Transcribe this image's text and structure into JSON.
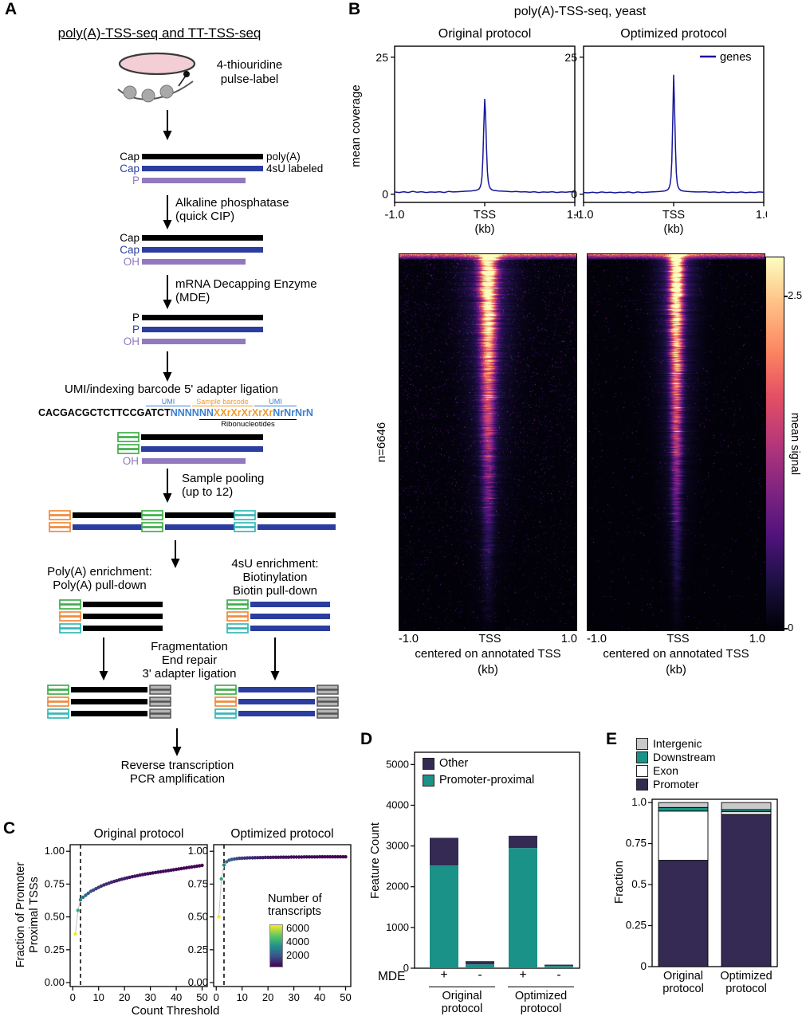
{
  "colors": {
    "dark_blue_line": "#16169b",
    "mrna_black": "#000000",
    "mrna_blue": "#2b3d9e",
    "mrna_purple": "#9279bd",
    "adapter_green": "#3faf4a",
    "adapter_orange": "#f08a3c",
    "adapter_teal": "#35b8b8",
    "teal_bar": "#1b9287",
    "purple_bar": "#352a54",
    "gray_bar": "#c9c9c9",
    "seq_blue": "#3c7fd0",
    "seq_orange": "#f09a2c"
  },
  "panelA": {
    "label": "A",
    "title": "poly(A)-TSS-seq and TT-TSS-seq",
    "pulse_line1": "4-thiouridine",
    "pulse_line2": "pulse-label",
    "g1_r1_left": "Cap",
    "g1_r1_right": "poly(A)",
    "g1_r2_left": "Cap",
    "g1_r2_right": "4sU labeled",
    "g1_r3_left": "P",
    "cip_line1": "Alkaline phosphatase",
    "cip_line2": "(quick CIP)",
    "g2_r1_left": "Cap",
    "g2_r2_left": "Cap",
    "g2_r3_left": "OH",
    "mde_line1": "mRNA Decapping Enzyme",
    "mde_line2": "(MDE)",
    "g3_r1_left": "P",
    "g3_r2_left": "P",
    "g3_r3_left": "OH",
    "ligation_title": "UMI/indexing barcode 5' adapter ligation",
    "seq_umi1": "UMI",
    "seq_barcode": "Sample barcode",
    "seq_umi2": "UMI",
    "seq_black": "CACGACGCTCTTCCGATCT",
    "seq_blue": "NNNNNN",
    "seq_orange": "XXrXrXrXrXr",
    "seq_blue2": "NrNrNrN",
    "seq_ribo": "Ribonucleotides",
    "lig_oh": "OH",
    "pool_line1": "Sample pooling",
    "pool_line2": "(up to 12)",
    "left_branch_line1": "Poly(A) enrichment:",
    "left_branch_line2": "Poly(A) pull-down",
    "right_branch_line1": "4sU enrichment:",
    "right_branch_line2": "Biotinylation",
    "right_branch_line3": "Biotin pull-down",
    "frag_line1": "Fragmentation",
    "frag_line2": "End repair",
    "frag_line3": "3' adapter ligation",
    "final_line1": "Reverse transcription",
    "final_line2": "PCR amplification"
  },
  "panelB": {
    "label": "B",
    "title": "poly(A)-TSS-seq, yeast",
    "subtitle_left": "Original protocol",
    "subtitle_right": "Optimized protocol",
    "ylabel": "mean coverage",
    "yticks": [
      "25",
      "0"
    ],
    "xticks": [
      "-1.0",
      "TSS",
      "1.0"
    ],
    "xunit": "(kb)",
    "legend": "genes",
    "n_label": "n=6646",
    "heat_xlabel": "centered on annotated TSS",
    "heat_xunit": "(kb)",
    "colorbar_label": "mean signal",
    "colorbar_ticks": [
      "2.5",
      "0"
    ]
  },
  "panelC": {
    "label": "C",
    "title_left": "Original protocol",
    "title_right": "Optimized protocol",
    "ylabel_line1": "Fraction of Promoter",
    "ylabel_line2": "Proximal TSSs",
    "xlabel": "Count Threshold",
    "legend_title_1": "Number of",
    "legend_title_2": "transcripts"
  },
  "panelD": {
    "label": "D",
    "ylabel": "Feature Count",
    "mde": "MDE",
    "group1_line1": "Original",
    "group1_line2": "protocol",
    "group2_line1": "Optimized",
    "group2_line2": "protocol"
  },
  "panelE": {
    "label": "E",
    "ylabel": "Fraction",
    "cat1_line1": "Original",
    "cat1_line2": "protocol",
    "cat2_line1": "Optimized",
    "cat2_line2": "protocol"
  },
  "chart_data": {
    "coverage_common": {
      "x": [
        -1,
        -0.95,
        -0.9,
        -0.85,
        -0.8,
        -0.75,
        -0.7,
        -0.65,
        -0.6,
        -0.55,
        -0.5,
        -0.45,
        -0.4,
        -0.35,
        -0.3,
        -0.25,
        -0.2,
        -0.15,
        -0.1,
        -0.08,
        -0.06,
        -0.05,
        -0.04,
        -0.03,
        -0.02,
        -0.01,
        0,
        0.01,
        0.02,
        0.03,
        0.04,
        0.05,
        0.06,
        0.08,
        0.1,
        0.15,
        0.2,
        0.25,
        0.3,
        0.35,
        0.4,
        0.45,
        0.5,
        0.55,
        0.6,
        0.65,
        0.7,
        0.75,
        0.8,
        0.85,
        0.9,
        0.95,
        1
      ],
      "xlim": [
        -1,
        1
      ],
      "ylim": [
        -1.5,
        27
      ],
      "yticks": [
        25,
        0
      ],
      "xticks": [
        -1,
        0,
        1
      ]
    },
    "coverage_original": {
      "type": "line",
      "name": "Original protocol",
      "y": [
        0.4,
        0.3,
        0.45,
        0.3,
        0.5,
        0.35,
        0.45,
        0.3,
        0.4,
        0.35,
        0.45,
        0.3,
        0.5,
        0.4,
        0.45,
        0.5,
        0.55,
        0.6,
        0.7,
        0.8,
        1.0,
        1.3,
        1.9,
        3.2,
        6.5,
        12.5,
        17.4,
        14.5,
        8.2,
        4.1,
        2.3,
        1.5,
        1.1,
        0.8,
        0.7,
        0.6,
        0.55,
        0.5,
        0.45,
        0.5,
        0.4,
        0.45,
        0.35,
        0.45,
        0.3,
        0.4,
        0.35,
        0.45,
        0.3,
        0.4,
        0.35,
        0.45,
        0.4
      ]
    },
    "coverage_optimized": {
      "type": "line",
      "name": "Optimized protocol",
      "y": [
        0.3,
        0.25,
        0.35,
        0.25,
        0.4,
        0.3,
        0.35,
        0.25,
        0.35,
        0.3,
        0.4,
        0.25,
        0.4,
        0.3,
        0.35,
        0.4,
        0.45,
        0.5,
        0.6,
        0.7,
        0.9,
        1.2,
        1.8,
        3.0,
        6.0,
        13.5,
        21.8,
        16.0,
        8.5,
        3.8,
        2.0,
        1.3,
        1.0,
        0.7,
        0.6,
        0.5,
        0.45,
        0.4,
        0.4,
        0.45,
        0.35,
        0.4,
        0.3,
        0.4,
        0.28,
        0.35,
        0.3,
        0.4,
        0.28,
        0.35,
        0.3,
        0.4,
        0.35
      ]
    },
    "heatmap": {
      "type": "heatmap",
      "n": 6646,
      "xlim_kb": [
        -1,
        1
      ],
      "zmax": 2.8,
      "colormap": "magma",
      "panels": [
        {
          "name": "Original protocol",
          "seed": 42,
          "noise": 0.06,
          "speckle": 0.05,
          "sigma": 5.4,
          "amp": 3.0
        },
        {
          "name": "Optimized protocol",
          "seed": 7,
          "noise": 0.035,
          "speckle": 0.02,
          "sigma": 4.3,
          "amp": 3.1
        }
      ]
    },
    "scatterC": {
      "type": "scatter",
      "xlim": [
        -1,
        52
      ],
      "ylim": [
        -0.03,
        1.05
      ],
      "yticks": [
        1,
        0.75,
        0.5,
        0.25,
        0
      ],
      "ytick_labels": [
        "1.00",
        "0.75",
        "0.50",
        "0.25",
        "0.00"
      ],
      "xticks": [
        0,
        10,
        20,
        30,
        40,
        50
      ],
      "dashed_x": 3,
      "legend": {
        "title": "Number of transcripts",
        "ticks": [
          "6000",
          "4000",
          "2000"
        ],
        "tick_values": [
          6000,
          4000,
          2000
        ],
        "range": [
          600,
          6646
        ]
      },
      "thresholds": [
        1,
        2,
        3,
        4,
        5,
        6,
        7,
        8,
        9,
        10,
        11,
        12,
        13,
        14,
        15,
        16,
        17,
        18,
        19,
        20,
        21,
        22,
        23,
        24,
        25,
        26,
        27,
        28,
        29,
        30,
        31,
        32,
        33,
        34,
        35,
        36,
        37,
        38,
        39,
        40,
        41,
        42,
        43,
        44,
        45,
        46,
        47,
        48,
        49,
        50
      ],
      "series": [
        {
          "name": "Original protocol",
          "y": [
            0.37,
            0.55,
            0.63,
            0.65,
            0.665,
            0.68,
            0.695,
            0.705,
            0.715,
            0.725,
            0.735,
            0.743,
            0.75,
            0.757,
            0.764,
            0.77,
            0.776,
            0.782,
            0.787,
            0.792,
            0.797,
            0.802,
            0.806,
            0.81,
            0.814,
            0.818,
            0.822,
            0.826,
            0.829,
            0.832,
            0.835,
            0.838,
            0.841,
            0.844,
            0.847,
            0.85,
            0.853,
            0.856,
            0.859,
            0.862,
            0.865,
            0.868,
            0.871,
            0.874,
            0.877,
            0.88,
            0.883,
            0.886,
            0.889,
            0.892
          ],
          "n": [
            6646,
            4383,
            3445,
            2891,
            2523,
            2272,
            2074,
            1906,
            1780,
            1669,
            1575,
            1494,
            1423,
            1360,
            1304,
            1253,
            1207,
            1165,
            1126,
            1091,
            1058,
            1028,
            1000,
            973,
            949,
            925,
            904,
            883,
            864,
            845,
            828,
            811,
            795,
            780,
            766,
            752,
            739,
            727,
            715,
            703,
            692,
            682,
            671,
            662,
            652,
            643,
            634,
            626,
            618,
            610
          ]
        },
        {
          "name": "Optimized protocol",
          "y": [
            0.5,
            0.79,
            0.895,
            0.92,
            0.932,
            0.938,
            0.941,
            0.944,
            0.946,
            0.947,
            0.948,
            0.949,
            0.95,
            0.95,
            0.951,
            0.951,
            0.952,
            0.952,
            0.953,
            0.953,
            0.953,
            0.954,
            0.954,
            0.954,
            0.955,
            0.955,
            0.955,
            0.955,
            0.956,
            0.956,
            0.956,
            0.956,
            0.956,
            0.957,
            0.957,
            0.957,
            0.957,
            0.957,
            0.957,
            0.958,
            0.958,
            0.958,
            0.958,
            0.958,
            0.958,
            0.958,
            0.958,
            0.958,
            0.958,
            0.958
          ],
          "n": [
            6646,
            4200,
            3300,
            2800,
            2450,
            2210,
            2030,
            1880,
            1760,
            1655,
            1565,
            1487,
            1418,
            1356,
            1300,
            1250,
            1204,
            1162,
            1123,
            1088,
            1055,
            1025,
            997,
            971,
            946,
            923,
            901,
            881,
            862,
            843,
            826,
            810,
            794,
            779,
            765,
            751,
            738,
            726,
            714,
            702,
            691,
            681,
            670,
            661,
            651,
            642,
            633,
            625,
            617,
            609
          ]
        }
      ]
    },
    "barD": {
      "type": "stacked-bar",
      "categories": [
        "+",
        "-",
        "+",
        "-"
      ],
      "ylim": [
        0,
        5300
      ],
      "yticks": [
        0,
        1000,
        2000,
        3000,
        4000,
        5000
      ],
      "ytick_labels": [
        "0",
        "1000",
        "2000",
        "3000",
        "4000",
        "5000"
      ],
      "series": [
        {
          "name": "Promoter-proximal",
          "color": "#1b9287",
          "values": [
            2520,
            95,
            2950,
            55
          ]
        },
        {
          "name": "Other",
          "color": "#352a54",
          "values": [
            680,
            78,
            300,
            32
          ]
        }
      ],
      "groups": [
        "Original protocol",
        "Optimized protocol"
      ]
    },
    "barE": {
      "type": "stacked-bar-fraction",
      "categories": [
        "Original protocol",
        "Optimized protocol"
      ],
      "yticks": [
        1,
        0.75,
        0.5,
        0.25,
        0
      ],
      "ytick_labels": [
        "1.0",
        "0.75",
        "0.5",
        "0.25",
        "0"
      ],
      "segments": [
        {
          "name": "Promoter",
          "color": "#352a54",
          "values": [
            0.648,
            0.928
          ]
        },
        {
          "name": "Exon",
          "color": "#ffffff",
          "values": [
            0.3,
            0.016
          ]
        },
        {
          "name": "Downstream",
          "color": "#1b9287",
          "values": [
            0.022,
            0.013
          ]
        },
        {
          "name": "Intergenic",
          "color": "#c9c9c9",
          "values": [
            0.03,
            0.043
          ]
        }
      ]
    }
  }
}
